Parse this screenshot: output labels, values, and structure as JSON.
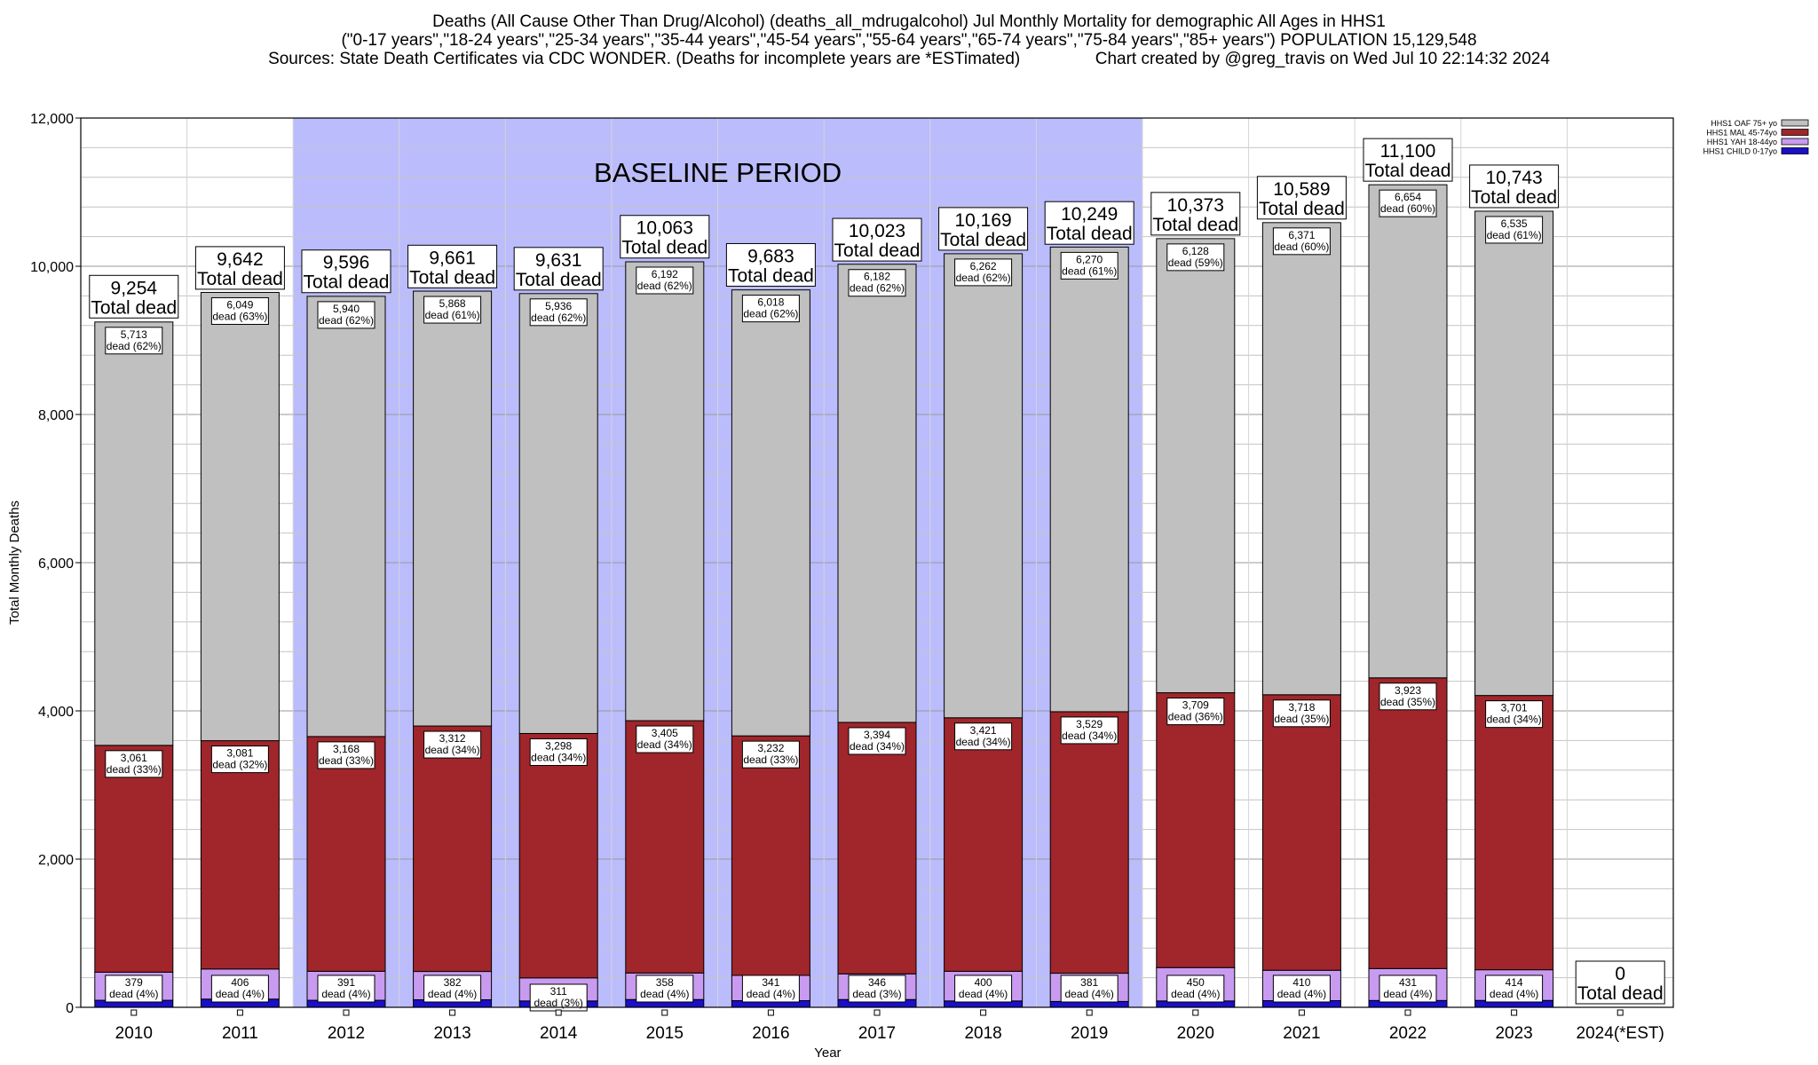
{
  "titles": {
    "line1": "Deaths (All Cause Other Than Drug/Alcohol) (deaths_all_mdrugalcohol) Jul Monthly Mortality for demographic All Ages in HHS1",
    "line2": "(\"0-17 years\",\"18-24 years\",\"25-34 years\",\"35-44 years\",\"45-54 years\",\"55-64 years\",\"65-74 years\",\"75-84 years\",\"85+ years\") POPULATION 15,129,548",
    "line3": "Sources: State Death Certificates via CDC WONDER. (Deaths for incomplete years are *ESTimated)                Chart created by @greg_travis on Wed Jul 10 22:14:32 2024"
  },
  "chart_data": {
    "type": "bar",
    "stacked": true,
    "xlabel": "Year",
    "ylabel": "Total Monthly Deaths",
    "ylim": [
      0,
      12000
    ],
    "yticks": [
      0,
      2000,
      4000,
      6000,
      8000,
      10000,
      12000
    ],
    "ytick_labels": [
      "0",
      "2,000",
      "4,000",
      "6,000",
      "8,000",
      "10,000",
      "12,000"
    ],
    "grid": true,
    "legend_position": "top-right",
    "categories": [
      "2010",
      "2011",
      "2012",
      "2013",
      "2014",
      "2015",
      "2016",
      "2017",
      "2018",
      "2019",
      "2020",
      "2021",
      "2022",
      "2023",
      "2024(*EST)"
    ],
    "series": [
      {
        "name": "HHS1 CHILD 0-17yo",
        "color": "#1a10c8",
        "values": [
          95,
          111,
          95,
          102,
          86,
          105,
          90,
          105,
          86,
          79,
          86,
          90,
          92,
          93,
          0
        ]
      },
      {
        "name": "HHS1 YAH 18-44yo",
        "color": "#c99bf0",
        "values": [
          379,
          406,
          391,
          382,
          311,
          358,
          341,
          346,
          400,
          381,
          450,
          410,
          431,
          414,
          0
        ],
        "labels": [
          "379\ndead (4%)",
          "406\ndead (4%)",
          "391\ndead (4%)",
          "382\ndead (4%)",
          "311\ndead (3%)",
          "358\ndead (4%)",
          "341\ndead (4%)",
          "346\ndead (3%)",
          "400\ndead (4%)",
          "381\ndead (4%)",
          "450\ndead (4%)",
          "410\ndead (4%)",
          "431\ndead (4%)",
          "414\ndead (4%)",
          ""
        ]
      },
      {
        "name": "HHS1 MAL 45-74yo",
        "color": "#a0262b",
        "values": [
          3061,
          3081,
          3168,
          3312,
          3298,
          3405,
          3232,
          3394,
          3421,
          3529,
          3709,
          3718,
          3923,
          3701,
          0
        ],
        "labels": [
          "3,061\ndead (33%)",
          "3,081\ndead (32%)",
          "3,168\ndead (33%)",
          "3,312\ndead (34%)",
          "3,298\ndead (34%)",
          "3,405\ndead (34%)",
          "3,232\ndead (33%)",
          "3,394\ndead (34%)",
          "3,421\ndead (34%)",
          "3,529\ndead (34%)",
          "3,709\ndead (36%)",
          "3,718\ndead (35%)",
          "3,923\ndead (35%)",
          "3,701\ndead (34%)",
          ""
        ]
      },
      {
        "name": "HHS1 OAF 75+ yo",
        "color": "#c0c0c0",
        "values": [
          5713,
          6049,
          5940,
          5868,
          5936,
          6192,
          6018,
          6182,
          6262,
          6270,
          6128,
          6371,
          6654,
          6535,
          0
        ],
        "labels": [
          "5,713\ndead (62%)",
          "6,049\ndead (63%)",
          "5,940\ndead (62%)",
          "5,868\ndead (61%)",
          "5,936\ndead (62%)",
          "6,192\ndead (62%)",
          "6,018\ndead (62%)",
          "6,182\ndead (62%)",
          "6,262\ndead (62%)",
          "6,270\ndead (61%)",
          "6,128\ndead (59%)",
          "6,371\ndead (60%)",
          "6,654\ndead (60%)",
          "6,535\ndead (61%)",
          ""
        ]
      }
    ],
    "totals": [
      9254,
      9642,
      9596,
      9661,
      9631,
      10063,
      9683,
      10023,
      10169,
      10249,
      10373,
      10589,
      11100,
      10743,
      0
    ],
    "total_labels": [
      "9,254",
      "9,642",
      "9,596",
      "9,661",
      "9,631",
      "10,063",
      "9,683",
      "10,023",
      "10,169",
      "10,249",
      "10,373",
      "10,589",
      "11,100",
      "10,743",
      "0"
    ],
    "total_suffix": "Total dead",
    "baseline": {
      "label": "BASELINE PERIOD",
      "from": "2012",
      "to": "2019",
      "color": "#bbbcfc"
    }
  }
}
